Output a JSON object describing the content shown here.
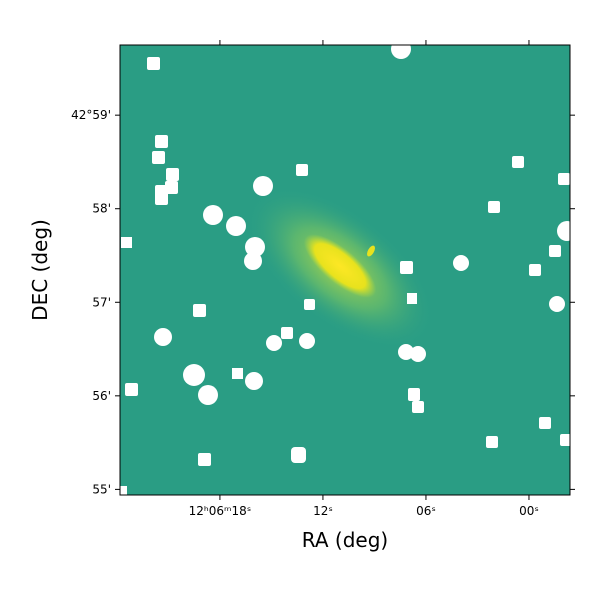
{
  "chart_data": {
    "type": "image",
    "xlabel": "RA (deg)",
    "ylabel": "DEC (deg)",
    "xlim": [
      23.82,
      -2.39
    ],
    "ylim": [
      54.94,
      59.75
    ],
    "xticks": [
      {
        "value": 18,
        "label": "12ʰ06ᵐ18ˢ"
      },
      {
        "value": 12,
        "label": "12ˢ"
      },
      {
        "value": 6,
        "label": "06ˢ"
      },
      {
        "value": 0,
        "label": "00ˢ"
      }
    ],
    "yticks": [
      {
        "value": 59,
        "label": "42°59'"
      },
      {
        "value": 58,
        "label": "58'"
      },
      {
        "value": 57,
        "label": "57'"
      },
      {
        "value": 56,
        "label": "56'"
      },
      {
        "value": 55,
        "label": "55'"
      }
    ]
  }
}
